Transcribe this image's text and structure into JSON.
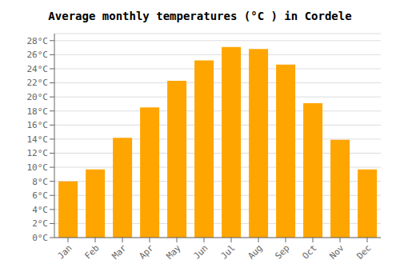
{
  "chart_data": {
    "type": "bar",
    "title": "Average monthly temperatures (°C ) in Cordele",
    "categories": [
      "Jan",
      "Feb",
      "Mar",
      "Apr",
      "May",
      "Jun",
      "Jul",
      "Aug",
      "Sep",
      "Oct",
      "Nov",
      "Dec"
    ],
    "values": [
      8.0,
      9.7,
      14.2,
      18.5,
      22.3,
      25.2,
      27.1,
      26.8,
      24.6,
      19.1,
      13.9,
      9.7
    ],
    "color": "#FFA500",
    "ylim": [
      0,
      29
    ],
    "yticks": [
      {
        "value": 0,
        "label": "0°C"
      },
      {
        "value": 2,
        "label": "2°C"
      },
      {
        "value": 4,
        "label": "4°C"
      },
      {
        "value": 6,
        "label": "6°C"
      },
      {
        "value": 8,
        "label": "8°C"
      },
      {
        "value": 10,
        "label": "10°C"
      },
      {
        "value": 12,
        "label": "12°C"
      },
      {
        "value": 14,
        "label": "14°C"
      },
      {
        "value": 16,
        "label": "16°C"
      },
      {
        "value": 18,
        "label": "18°C"
      },
      {
        "value": 20,
        "label": "20°C"
      },
      {
        "value": 22,
        "label": "22°C"
      },
      {
        "value": 24,
        "label": "24°C"
      },
      {
        "value": 26,
        "label": "26°C"
      },
      {
        "value": 28,
        "label": "28°C"
      }
    ],
    "grid": true
  }
}
